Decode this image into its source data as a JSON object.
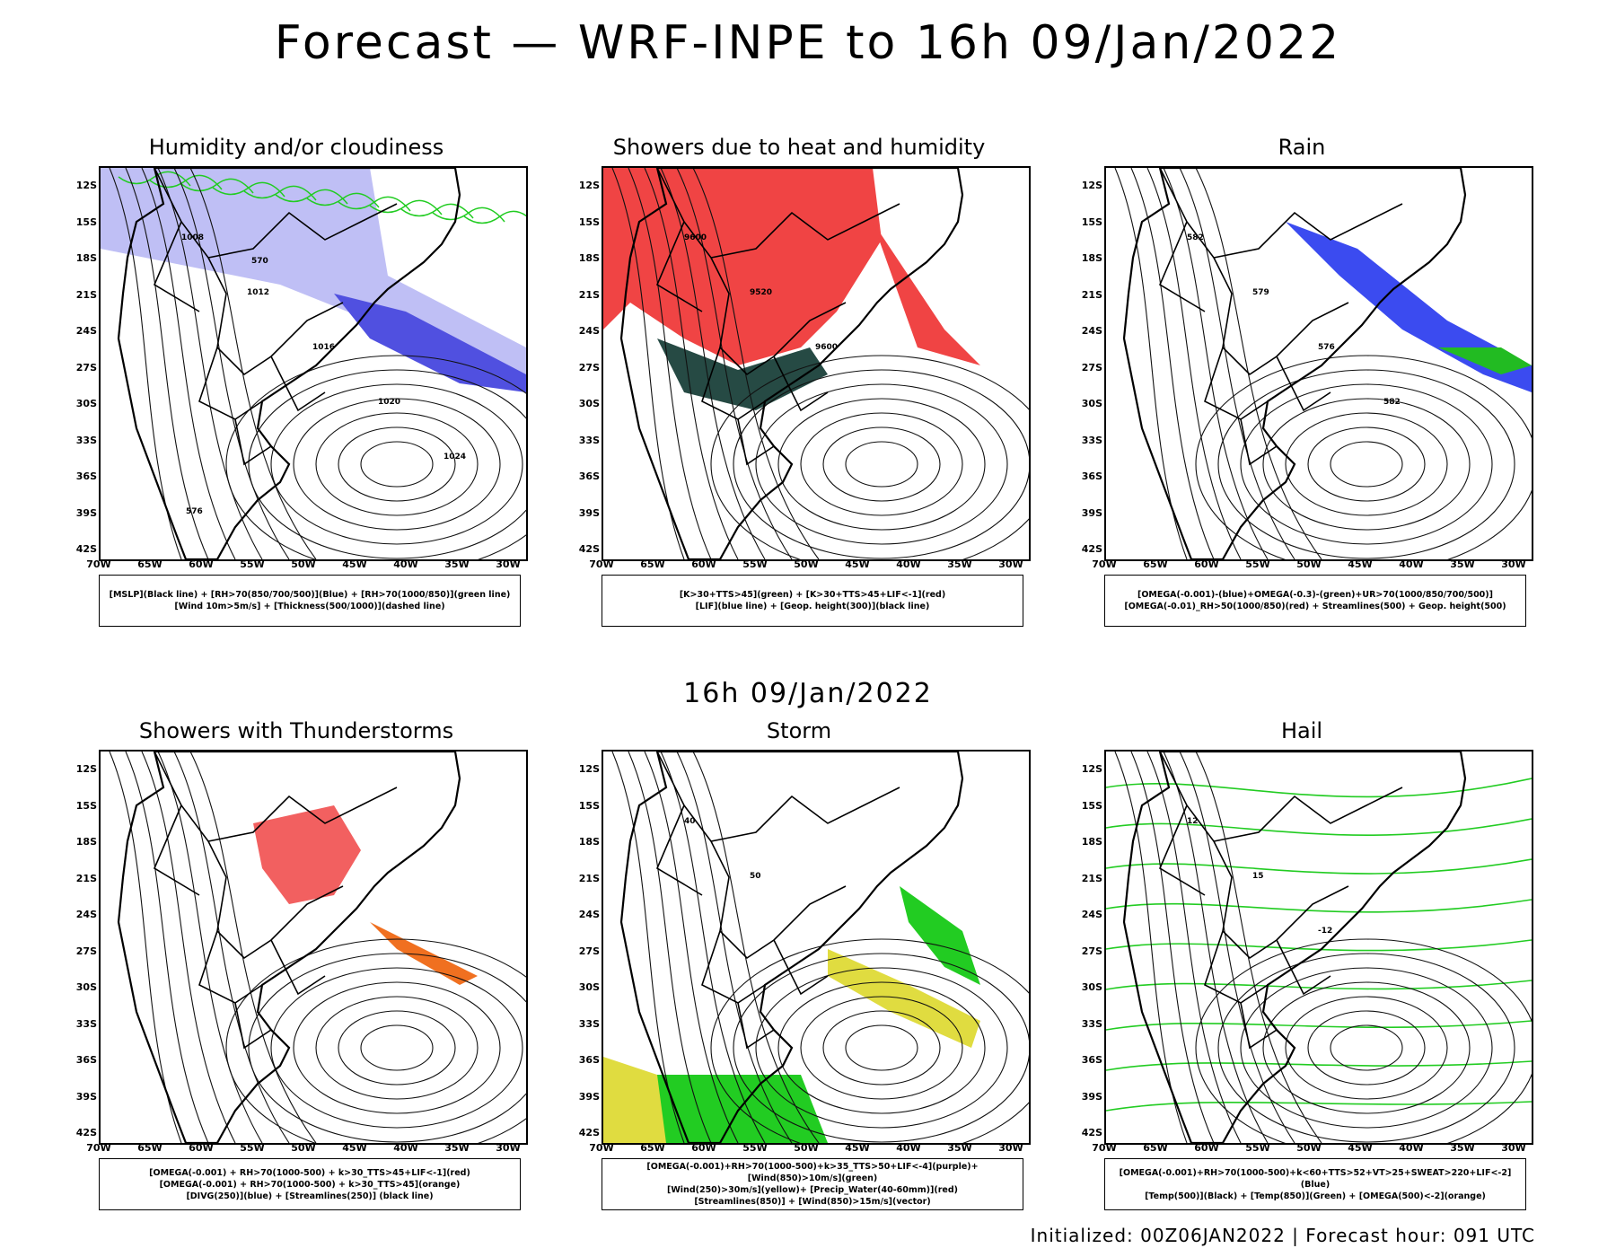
{
  "main_title": "Forecast — WRF-INPE to 16h 09/Jan/2022",
  "mid_title": "16h 09/Jan/2022",
  "footer": "Initialized: 00Z06JAN2022 | Forecast hour: 091 UTC",
  "lat_labels": [
    "12S",
    "15S",
    "18S",
    "21S",
    "24S",
    "27S",
    "30S",
    "33S",
    "36S",
    "39S",
    "42S"
  ],
  "lon_labels": [
    "70W",
    "65W",
    "60W",
    "55W",
    "50W",
    "45W",
    "40W",
    "35W",
    "30W"
  ],
  "panels": [
    {
      "title": "Humidity and/or cloudiness",
      "legend": [
        "[MSLP](Black line) + [RH>70(850/700/500)](Blue) + [RH>70(1000/850)](green line)",
        "[Wind 10m>5m/s] + [Thickness(500/1000)](dashed line)"
      ],
      "contour_labels": [
        "1008",
        "1012",
        "1016",
        "1020",
        "1024",
        "576",
        "570"
      ]
    },
    {
      "title": "Showers due to heat and humidity",
      "legend": [
        "[K>30+TTS>45](green) + [K>30+TTS>45+LIF<-1](red)",
        "[LIF](blue line) + [Geop. height(300)](black line)"
      ],
      "contour_labels": [
        "9600",
        "9520",
        "9600"
      ]
    },
    {
      "title": "Rain",
      "legend": [
        "[OMEGA(-0.001)-(blue)+OMEGA(-0.3)-(green)+UR>70(1000/850/700/500)]",
        "[OMEGA(-0.01)_RH>50(1000/850)(red) + Streamlines(500) + Geop. height(500)"
      ],
      "contour_labels": [
        "582",
        "579",
        "576",
        "582"
      ]
    },
    {
      "title": "Showers with Thunderstorms",
      "legend": [
        "[OMEGA(-0.001) + RH>70(1000-500) + k>30_TTS>45+LIF<-1](red)",
        "[OMEGA(-0.001) + RH>70(1000-500) + k>30_TTS>45](orange)",
        "[DIVG(250)](blue) + [Streamlines(250)] (black line)"
      ],
      "contour_labels": []
    },
    {
      "title": "Storm",
      "legend": [
        "[OMEGA(-0.001)+RH>70(1000-500)+k>35_TTS>50+LIF<-4](purple)+[Wind(850)>10m/s](green)",
        "[Wind(250)>30m/s](yellow)+ [Precip_Water(40-60mm)](red)",
        "[Streamlines(850)] + [Wind(850)>15m/s](vector)"
      ],
      "contour_labels": [
        "40",
        "50"
      ]
    },
    {
      "title": "Hail",
      "legend": [
        "[OMEGA(-0.001)+RH>70(1000-500)+k<60+TTS>52+VT>25+SWEAT>220+LIF<-2](Blue)",
        "[Temp(500)](Black) + [Temp(850)](Green) + [OMEGA(500)<-2](orange)"
      ],
      "contour_labels": [
        "12",
        "15",
        "-12"
      ]
    }
  ]
}
